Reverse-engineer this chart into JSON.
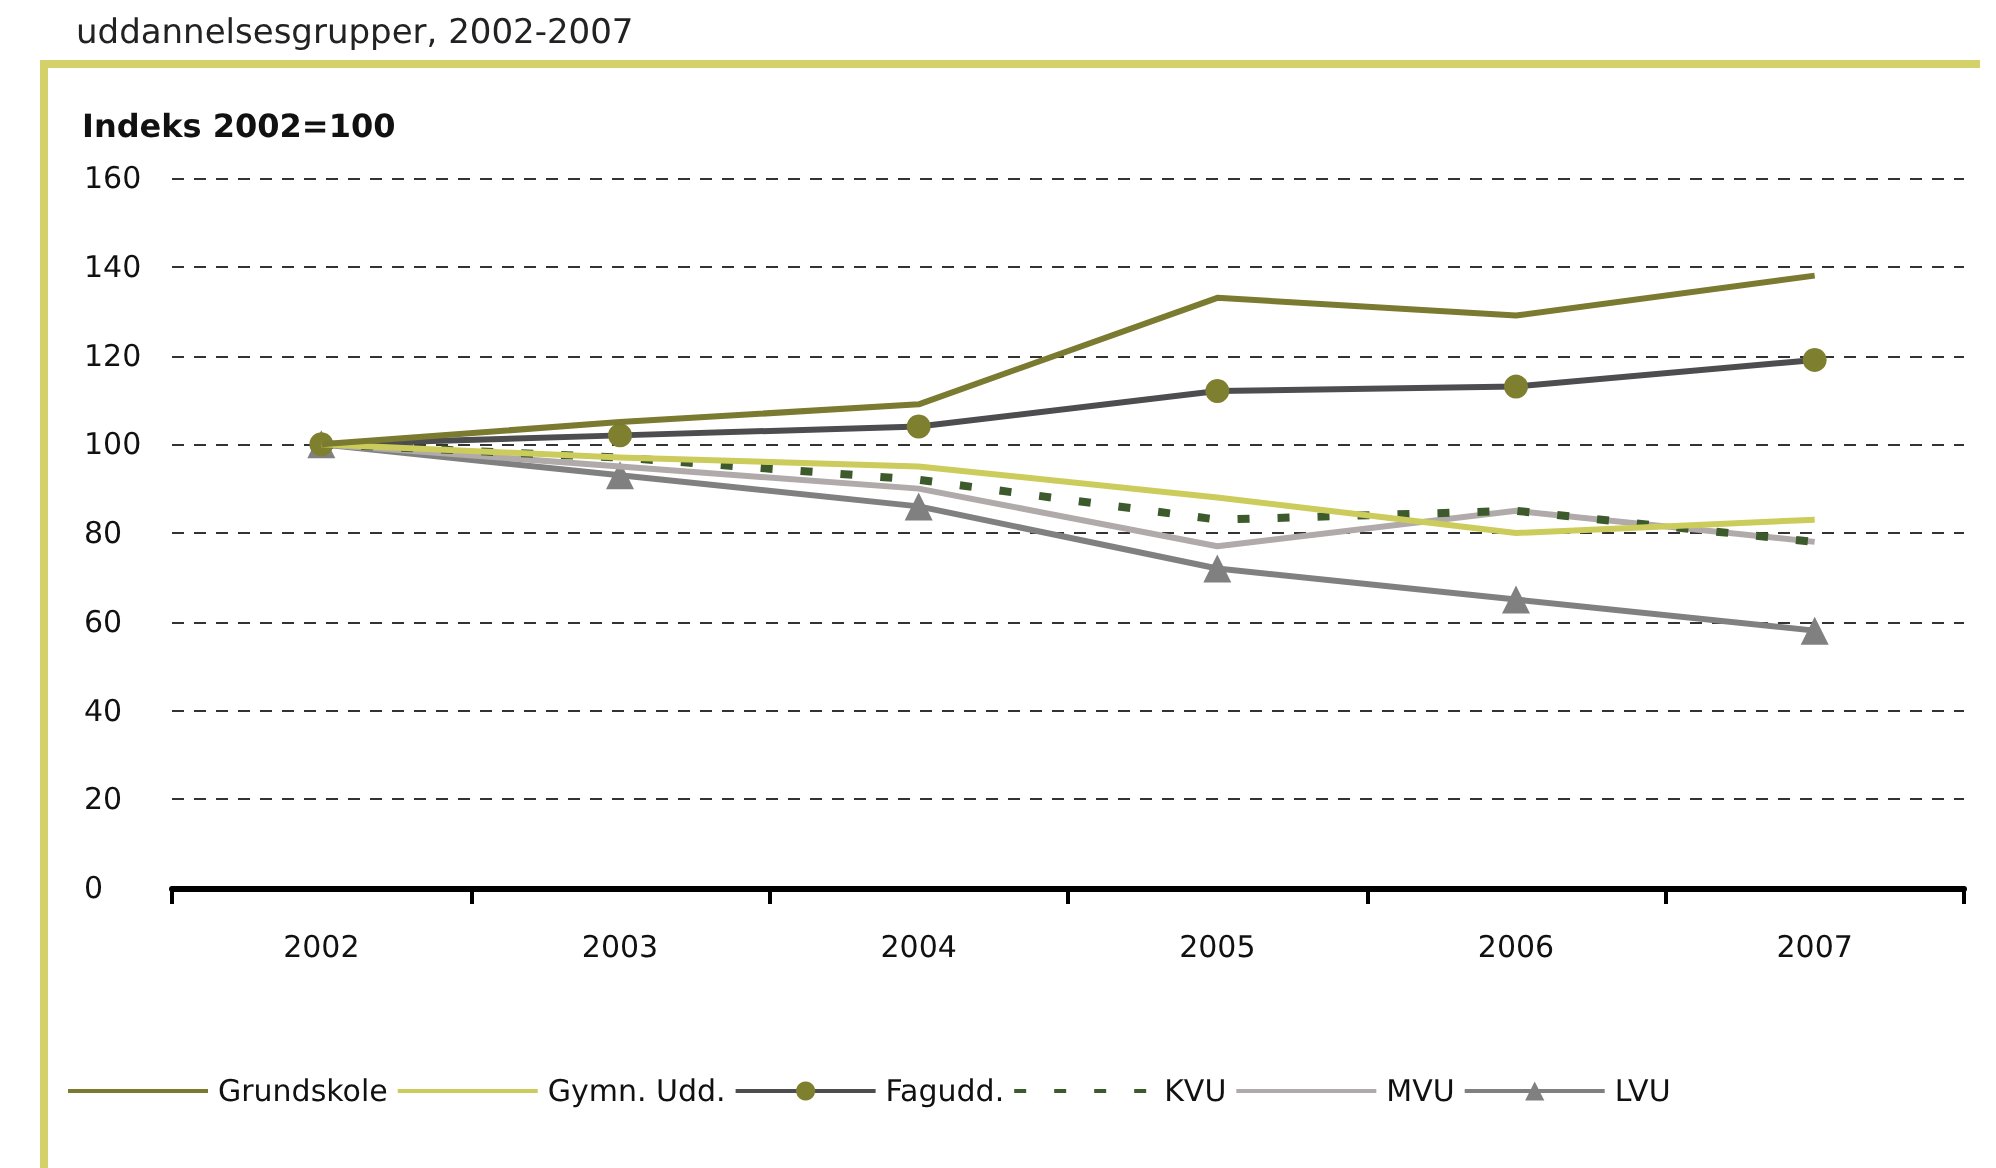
{
  "chart_data": {
    "type": "line",
    "title": "uddannelsesgrupper, 2002-2007",
    "ylabel": "Indeks 2002=100",
    "categories": [
      "2002",
      "2003",
      "2004",
      "2005",
      "2006",
      "2007"
    ],
    "series": [
      {
        "name": "Grundskole",
        "color": "#7a7a30",
        "values": [
          100,
          105,
          109,
          133,
          129,
          138
        ]
      },
      {
        "name": "Gymn. Udd.",
        "color": "#cccc5c",
        "values": [
          100,
          97,
          95,
          88,
          80,
          83
        ]
      },
      {
        "name": "Fagudd.",
        "color": "#4d4d4f",
        "marker": "circle",
        "values": [
          100,
          102,
          104,
          112,
          113,
          119
        ]
      },
      {
        "name": "KVU",
        "color": "#3d5a2c",
        "line_style": "dashed",
        "values": [
          100,
          97,
          92,
          83,
          85,
          78
        ]
      },
      {
        "name": "MVU",
        "color": "#b0aaaa",
        "values": [
          100,
          95,
          90,
          77,
          85,
          78
        ]
      },
      {
        "name": "LVU",
        "color": "#808080",
        "marker": "triangle",
        "values": [
          100,
          93,
          86,
          72,
          65,
          58
        ]
      }
    ],
    "ylim": [
      0,
      160
    ],
    "yticks": [
      0,
      20,
      40,
      60,
      80,
      100,
      120,
      140,
      160
    ],
    "grid": "y",
    "legend": "bottom",
    "marker": "none",
    "line_style": "solid"
  }
}
